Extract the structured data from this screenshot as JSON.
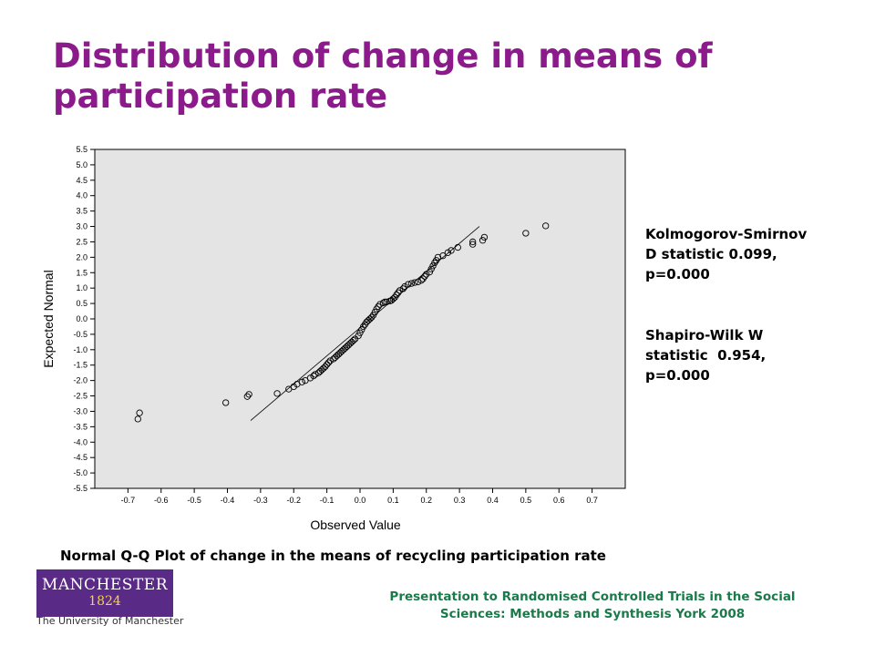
{
  "slide": {
    "title": "Distribution of change in means of participation rate",
    "caption": "Normal Q-Q Plot of change in the means of recycling participation rate",
    "footer_line1": "Presentation to Randomised Controlled Trials in the Social",
    "footer_line2": "Sciences: Methods and Synthesis York 2008",
    "colors": {
      "title": "#8b1a8b",
      "footer": "#1a7a4a",
      "logo": "#5a2a87",
      "plot_bg": "#e4e4e4"
    }
  },
  "logo": {
    "name": "MANCHESTER",
    "year": "1824",
    "subtitle": "The University of Manchester"
  },
  "stats": {
    "ks_line1": "Kolmogorov-Smirnov",
    "ks_line2": "D statistic 0.099,",
    "ks_line3": "p=0.000",
    "sw_line1": "Shapiro-Wilk W",
    "sw_line2": "statistic  0.954,",
    "sw_line3": "p=0.000"
  },
  "chart_data": {
    "type": "scatter",
    "title": "",
    "xlabel": "Observed Value",
    "ylabel": "Expected Normal",
    "xlim": [
      -0.8,
      0.8
    ],
    "ylim": [
      -5.5,
      5.5
    ],
    "x_ticks": [
      "-0.7",
      "-0.6",
      "-0.5",
      "-0.4",
      "-0.3",
      "-0.2",
      "-0.1",
      "0.0",
      "0.1",
      "0.2",
      "0.3",
      "0.4",
      "0.5",
      "0.6",
      "0.7"
    ],
    "y_ticks": [
      "5.5",
      "5.0",
      "4.5",
      "4.0",
      "3.5",
      "3.0",
      "2.5",
      "2.0",
      "1.5",
      "1.0",
      "0.5",
      "0.0",
      "-0.5",
      "-1.0",
      "-1.5",
      "-2.0",
      "-2.5",
      "-3.0",
      "-3.5",
      "-4.0",
      "-4.5",
      "-5.0",
      "-5.5"
    ],
    "reference_line": {
      "x": [
        -0.33,
        0.36
      ],
      "y": [
        -3.3,
        3.0
      ]
    },
    "grid": false,
    "points": [
      [
        -0.67,
        -3.25
      ],
      [
        -0.665,
        -3.05
      ],
      [
        -0.405,
        -2.72
      ],
      [
        -0.34,
        -2.52
      ],
      [
        -0.335,
        -2.45
      ],
      [
        -0.25,
        -2.42
      ],
      [
        -0.215,
        -2.28
      ],
      [
        -0.2,
        -2.2
      ],
      [
        -0.19,
        -2.12
      ],
      [
        -0.175,
        -2.05
      ],
      [
        -0.165,
        -2.0
      ],
      [
        -0.15,
        -1.92
      ],
      [
        -0.14,
        -1.85
      ],
      [
        -0.135,
        -1.8
      ],
      [
        -0.125,
        -1.75
      ],
      [
        -0.12,
        -1.7
      ],
      [
        -0.115,
        -1.65
      ],
      [
        -0.11,
        -1.6
      ],
      [
        -0.105,
        -1.55
      ],
      [
        -0.1,
        -1.48
      ],
      [
        -0.095,
        -1.42
      ],
      [
        -0.09,
        -1.36
      ],
      [
        -0.08,
        -1.3
      ],
      [
        -0.075,
        -1.25
      ],
      [
        -0.07,
        -1.2
      ],
      [
        -0.065,
        -1.15
      ],
      [
        -0.06,
        -1.1
      ],
      [
        -0.055,
        -1.05
      ],
      [
        -0.05,
        -1.0
      ],
      [
        -0.045,
        -0.95
      ],
      [
        -0.04,
        -0.9
      ],
      [
        -0.035,
        -0.85
      ],
      [
        -0.03,
        -0.8
      ],
      [
        -0.025,
        -0.75
      ],
      [
        -0.02,
        -0.7
      ],
      [
        -0.015,
        -0.65
      ],
      [
        -0.005,
        -0.55
      ],
      [
        0.0,
        -0.45
      ],
      [
        0.005,
        -0.35
      ],
      [
        0.01,
        -0.25
      ],
      [
        0.015,
        -0.18
      ],
      [
        0.02,
        -0.1
      ],
      [
        0.025,
        -0.05
      ],
      [
        0.03,
        0.0
      ],
      [
        0.035,
        0.05
      ],
      [
        0.04,
        0.12
      ],
      [
        0.045,
        0.22
      ],
      [
        0.05,
        0.32
      ],
      [
        0.055,
        0.4
      ],
      [
        0.06,
        0.47
      ],
      [
        0.07,
        0.52
      ],
      [
        0.075,
        0.55
      ],
      [
        0.08,
        0.55
      ],
      [
        0.09,
        0.58
      ],
      [
        0.095,
        0.6
      ],
      [
        0.1,
        0.65
      ],
      [
        0.105,
        0.7
      ],
      [
        0.11,
        0.78
      ],
      [
        0.115,
        0.85
      ],
      [
        0.12,
        0.92
      ],
      [
        0.13,
        0.98
      ],
      [
        0.135,
        1.05
      ],
      [
        0.145,
        1.12
      ],
      [
        0.155,
        1.15
      ],
      [
        0.165,
        1.18
      ],
      [
        0.175,
        1.2
      ],
      [
        0.185,
        1.25
      ],
      [
        0.19,
        1.3
      ],
      [
        0.195,
        1.38
      ],
      [
        0.2,
        1.45
      ],
      [
        0.21,
        1.52
      ],
      [
        0.215,
        1.62
      ],
      [
        0.22,
        1.72
      ],
      [
        0.225,
        1.82
      ],
      [
        0.23,
        1.9
      ],
      [
        0.235,
        2.0
      ],
      [
        0.25,
        2.05
      ],
      [
        0.265,
        2.15
      ],
      [
        0.275,
        2.22
      ],
      [
        0.295,
        2.32
      ],
      [
        0.34,
        2.42
      ],
      [
        0.34,
        2.5
      ],
      [
        0.37,
        2.55
      ],
      [
        0.375,
        2.65
      ],
      [
        0.5,
        2.78
      ],
      [
        0.56,
        3.02
      ]
    ]
  }
}
